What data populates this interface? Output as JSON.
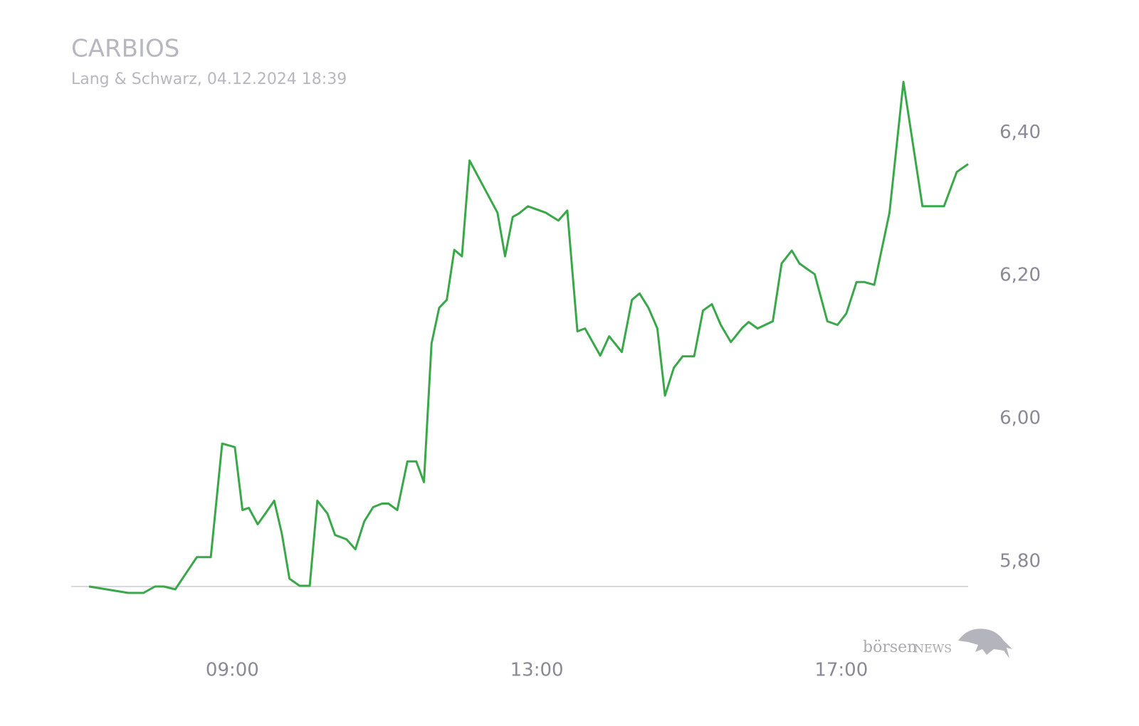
{
  "chart_data": {
    "type": "line",
    "title": "CARBIOS",
    "subtitle": "Lang & Schwarz, 04.12.2024 18:39",
    "logo": [
      "börsen",
      "NEWS"
    ],
    "x": [
      "07:07",
      "07:38",
      "07:50",
      "07:59",
      "08:06",
      "08:15",
      "08:32",
      "08:43",
      "08:52",
      "09:02",
      "09:08",
      "09:13",
      "09:20",
      "09:26",
      "09:33",
      "09:39",
      "09:45",
      "09:53",
      "10:01",
      "10:07",
      "10:15",
      "10:21",
      "10:30",
      "10:37",
      "10:44",
      "10:51",
      "10:58",
      "11:03",
      "11:10",
      "11:18",
      "11:25",
      "11:31",
      "11:37",
      "11:43",
      "11:49",
      "11:55",
      "12:01",
      "12:07",
      "12:29",
      "12:35",
      "12:41",
      "12:46",
      "12:53",
      "13:07",
      "13:17",
      "13:24",
      "13:32",
      "13:38",
      "13:50",
      "13:57",
      "14:07",
      "14:15",
      "14:21",
      "14:28",
      "14:35",
      "14:41",
      "14:48",
      "14:55",
      "15:04",
      "15:11",
      "15:18",
      "15:25",
      "15:33",
      "15:42",
      "15:47",
      "15:54",
      "16:06",
      "16:13",
      "16:21",
      "16:27",
      "16:34",
      "16:39",
      "16:49",
      "16:57",
      "17:04",
      "17:12",
      "17:18",
      "17:26",
      "17:38",
      "17:49",
      "18:04",
      "18:21",
      "18:31",
      "18:40"
    ],
    "series": [
      {
        "color": "#3aa84a",
        "values": [
          5.765,
          5.756,
          5.756,
          5.765,
          5.765,
          5.761,
          5.806,
          5.806,
          5.965,
          5.96,
          5.872,
          5.875,
          5.852,
          5.867,
          5.885,
          5.839,
          5.776,
          5.766,
          5.766,
          5.885,
          5.867,
          5.837,
          5.831,
          5.817,
          5.856,
          5.876,
          5.881,
          5.881,
          5.872,
          5.94,
          5.94,
          5.911,
          6.105,
          6.155,
          6.166,
          6.236,
          6.227,
          6.361,
          6.288,
          6.227,
          6.282,
          6.287,
          6.297,
          6.288,
          6.277,
          6.291,
          6.122,
          6.126,
          6.088,
          6.115,
          6.093,
          6.166,
          6.175,
          6.155,
          6.126,
          6.032,
          6.071,
          6.087,
          6.087,
          6.151,
          6.16,
          6.131,
          6.107,
          6.127,
          6.135,
          6.126,
          6.136,
          6.217,
          6.235,
          6.217,
          6.208,
          6.202,
          6.136,
          6.131,
          6.147,
          6.191,
          6.191,
          6.187,
          6.288,
          6.471,
          6.297,
          6.297,
          6.345,
          6.356
        ]
      }
    ],
    "xlim": [
      "07:07",
      "18:40"
    ],
    "xticks": [
      "09:00",
      "13:00",
      "17:00"
    ],
    "ylim": [
      5.765,
      6.48
    ],
    "yticks": [
      {
        "value": 5.8,
        "label": "5,80"
      },
      {
        "value": 6.0,
        "label": "6,00"
      },
      {
        "value": 6.2,
        "label": "6,20"
      },
      {
        "value": 6.4,
        "label": "6,40"
      }
    ]
  }
}
